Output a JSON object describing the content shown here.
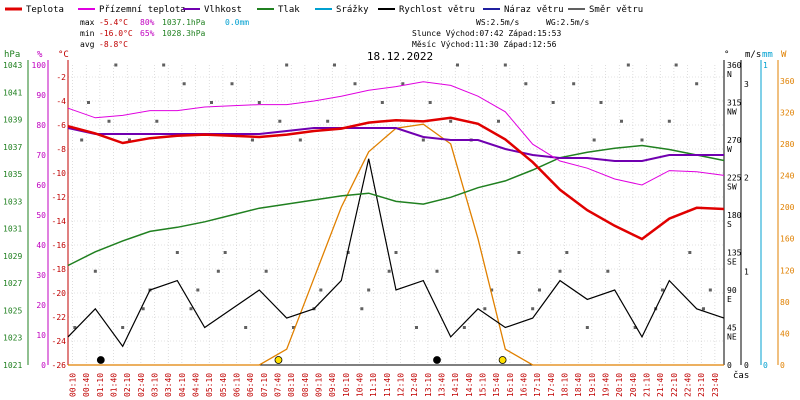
{
  "chart_data": {
    "type": "line",
    "title": "18.12.2022",
    "legend": [
      {
        "name": "Teplota",
        "color": "#e00000"
      },
      {
        "name": "Přízemní teplota",
        "color": "#e000e0"
      },
      {
        "name": "Vlhkost",
        "color": "#7000b0"
      },
      {
        "name": "Tlak",
        "color": "#208020"
      },
      {
        "name": "Srážky",
        "color": "#00a0d0"
      },
      {
        "name": "Rychlost větru",
        "color": "#000000"
      },
      {
        "name": "Náraz větru",
        "color": "#2020a0"
      },
      {
        "name": "Směr větru",
        "color": "#606060"
      }
    ],
    "stats": {
      "max": {
        "label": "max",
        "temp": "-5.4°C",
        "hum": "80%",
        "press": "1037.1hPa",
        "rain": "0.0mm"
      },
      "min": {
        "label": "min",
        "temp": "-16.0°C",
        "hum": "65%",
        "press": "1028.3hPa"
      },
      "avg": {
        "label": "avg",
        "temp": "-8.8°C"
      },
      "ws": "WS:2.5m/s",
      "wg": "WG:2.5m/s",
      "sun_line": "Slunce Východ:07:42  Západ:15:53",
      "moon_line": "Měsíc  Východ:11:30  Západ:12:56"
    },
    "axes": {
      "hpa": {
        "title": "hPa",
        "ticks": [
          "1043",
          "1041",
          "1039",
          "1037",
          "1035",
          "1033",
          "1031",
          "1029",
          "1027",
          "1025",
          "1023",
          "1021"
        ]
      },
      "pct": {
        "title": "%",
        "ticks": [
          "100",
          "90",
          "80",
          "70",
          "60",
          "50",
          "40",
          "30",
          "20",
          "10",
          "0"
        ]
      },
      "temp": {
        "title": "°C",
        "ticks": [
          "-2",
          "-4",
          "-6",
          "-8",
          "-10",
          "-12",
          "-14",
          "-16",
          "-18",
          "-20",
          "-22",
          "-24",
          "-26"
        ]
      },
      "dir": {
        "title": "°",
        "ticks": [
          "360 N",
          "315 NW",
          "270 W",
          "225 SW",
          "180 S",
          "135 SE",
          "90 E",
          "45 NE",
          "0"
        ]
      },
      "ms": {
        "title": "m/s",
        "ticks": [
          "3",
          "2",
          "1",
          "0"
        ]
      },
      "mm": {
        "title": "mm",
        "ticks": [
          "1",
          "0"
        ]
      },
      "wm2": {
        "title": "W",
        "ticks": [
          "360",
          "320",
          "280",
          "240",
          "200",
          "160",
          "120",
          "80",
          "40",
          "0"
        ]
      },
      "xlabel": "čas",
      "time_ticks": [
        "00:10",
        "00:40",
        "01:10",
        "01:40",
        "02:10",
        "02:40",
        "03:10",
        "03:40",
        "04:10",
        "04:40",
        "05:10",
        "05:40",
        "06:10",
        "06:40",
        "07:10",
        "07:40",
        "08:10",
        "08:40",
        "09:10",
        "09:40",
        "10:10",
        "10:40",
        "11:10",
        "11:40",
        "12:10",
        "12:40",
        "13:10",
        "13:40",
        "14:10",
        "14:40",
        "15:10",
        "15:40",
        "16:10",
        "16:40",
        "17:10",
        "17:40",
        "18:10",
        "18:40",
        "19:10",
        "19:40",
        "20:10",
        "20:40",
        "21:10",
        "21:40",
        "22:10",
        "22:40",
        "23:10",
        "23:40"
      ]
    },
    "series_hours": [
      0,
      1,
      2,
      3,
      4,
      5,
      6,
      7,
      8,
      9,
      10,
      11,
      12,
      13,
      14,
      15,
      16,
      17,
      18,
      19,
      20,
      21,
      22,
      23,
      24
    ],
    "temperature_c": [
      -6.1,
      -6.7,
      -7.5,
      -7.1,
      -6.9,
      -6.8,
      -6.9,
      -7.0,
      -6.8,
      -6.5,
      -6.3,
      -5.8,
      -5.6,
      -5.7,
      -5.4,
      -5.9,
      -7.2,
      -9.1,
      -11.4,
      -13.1,
      -14.4,
      -15.5,
      -13.8,
      -12.9,
      -13.0
    ],
    "ground_temp_c": [
      -4.6,
      -5.4,
      -5.2,
      -4.8,
      -4.8,
      -4.5,
      -4.4,
      -4.3,
      -4.3,
      -4.0,
      -3.6,
      -3.1,
      -2.8,
      -2.4,
      -2.7,
      -3.6,
      -4.9,
      -7.6,
      -9.0,
      -9.6,
      -10.5,
      -11.0,
      -9.8,
      -9.9,
      -10.2
    ],
    "humidity_pct": [
      79,
      77,
      77,
      77,
      77,
      77,
      77,
      77,
      78,
      79,
      79,
      79,
      79,
      76,
      75,
      75,
      72,
      70,
      69,
      69,
      68,
      68,
      70,
      70,
      70
    ],
    "pressure_hpa": [
      1028.3,
      1029.3,
      1030.1,
      1030.8,
      1031.1,
      1031.5,
      1032.0,
      1032.5,
      1032.8,
      1033.1,
      1033.4,
      1033.6,
      1033.0,
      1032.8,
      1033.3,
      1034.0,
      1034.5,
      1035.3,
      1036.2,
      1036.6,
      1036.9,
      1037.1,
      1036.8,
      1036.4,
      1036.0
    ],
    "wind_speed_ms": [
      0.3,
      0.6,
      0.2,
      0.8,
      0.9,
      0.4,
      0.6,
      0.8,
      0.5,
      0.6,
      0.9,
      2.2,
      0.8,
      0.9,
      0.3,
      0.6,
      0.4,
      0.5,
      0.9,
      0.7,
      0.8,
      0.3,
      0.9,
      0.6,
      0.5
    ],
    "solar_w_m2": [
      0,
      0,
      0,
      0,
      0,
      0,
      0,
      0,
      20,
      110,
      200,
      270,
      300,
      305,
      280,
      160,
      20,
      0,
      0,
      0,
      0,
      0,
      0,
      0,
      0
    ],
    "rain_mm": [
      0,
      0,
      0,
      0,
      0,
      0,
      0,
      0,
      0,
      0,
      0,
      0,
      0,
      0,
      0,
      0,
      0,
      0,
      0,
      0,
      0,
      0,
      0,
      0,
      0
    ],
    "ylim_temp": [
      -26,
      -1
    ],
    "ylim_pct": [
      0,
      100
    ],
    "ylim_hpa": [
      1021,
      1043
    ],
    "ylim_ms": [
      0,
      3.2
    ],
    "ylim_wm2": [
      0,
      380
    ],
    "ylim_dir": [
      0,
      360
    ],
    "grid": true,
    "legend_position": "top",
    "colors": {
      "time_axis": "#c00000",
      "hpa_axis": "#208020",
      "pct_axis": "#c000c0",
      "temp_axis": "#c00000",
      "ms_axis": "#000000",
      "mm_axis": "#00a0d0",
      "wm2_axis": "#e08000",
      "solar": "#e08000",
      "grid": "#c8c8c8",
      "dir_points": "#606060"
    }
  }
}
